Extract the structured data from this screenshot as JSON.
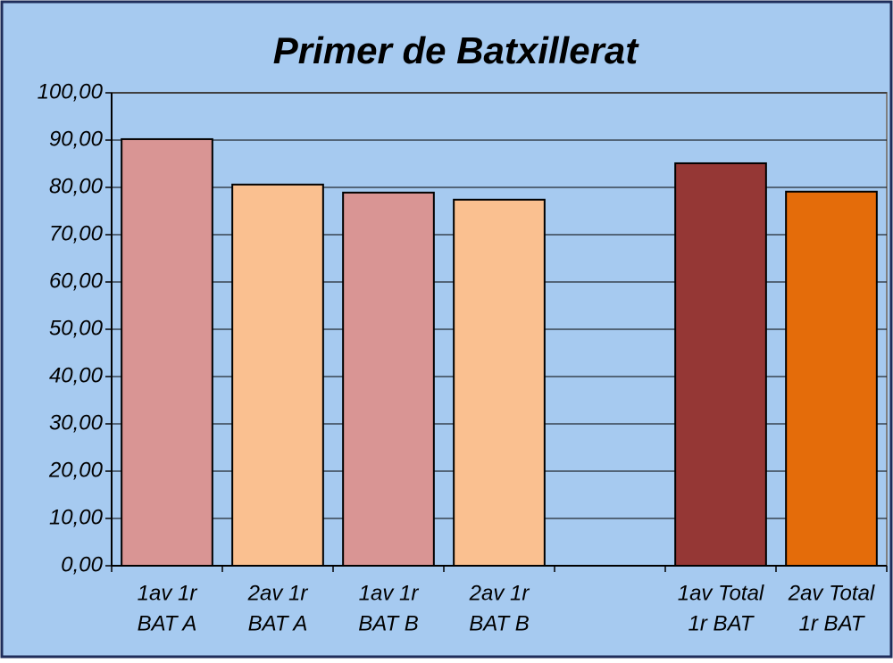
{
  "chart_data": {
    "type": "bar",
    "title": "Primer de Batxillerat",
    "categories": [
      [
        "1av 1r",
        "BAT A"
      ],
      [
        "2av 1r",
        "BAT A"
      ],
      [
        "1av 1r",
        "BAT B"
      ],
      [
        "2av 1r",
        "BAT B"
      ],
      null,
      [
        "1av Total",
        "1r BAT"
      ],
      [
        "2av Total",
        "1r BAT"
      ]
    ],
    "values": [
      90.2,
      80.6,
      78.9,
      77.4,
      null,
      85.1,
      79.1
    ],
    "colors": [
      "#d99594",
      "#fac090",
      "#d99594",
      "#fac090",
      null,
      "#953735",
      "#e46c0a"
    ],
    "ylim": [
      0,
      100
    ],
    "yticks": [
      {
        "value": 0,
        "label": "0,00"
      },
      {
        "value": 10,
        "label": "10,00"
      },
      {
        "value": 20,
        "label": "20,00"
      },
      {
        "value": 30,
        "label": "30,00"
      },
      {
        "value": 40,
        "label": "40,00"
      },
      {
        "value": 50,
        "label": "50,00"
      },
      {
        "value": 60,
        "label": "60,00"
      },
      {
        "value": 70,
        "label": "70,00"
      },
      {
        "value": 80,
        "label": "80,00"
      },
      {
        "value": 90,
        "label": "90,00"
      },
      {
        "value": 100,
        "label": "100,00"
      }
    ],
    "grid": true
  }
}
